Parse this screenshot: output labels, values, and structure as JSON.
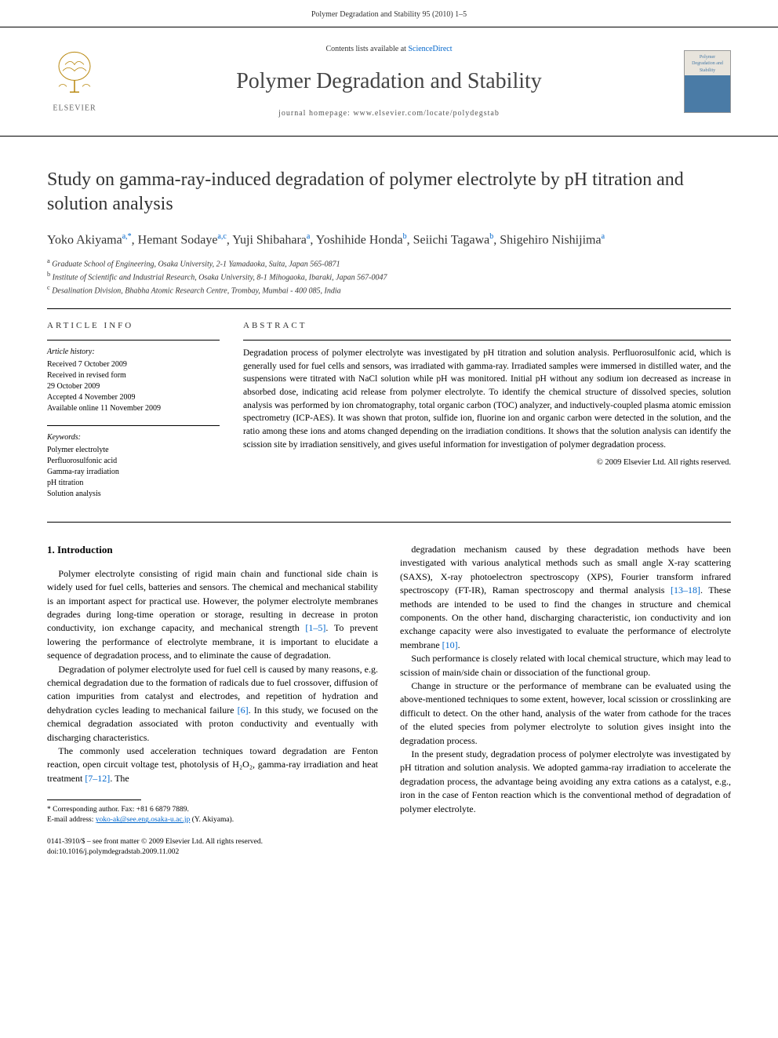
{
  "header": {
    "running_head": "Polymer Degradation and Stability 95 (2010) 1–5"
  },
  "masthead": {
    "contents_prefix": "Contents lists available at ",
    "contents_link": "ScienceDirect",
    "journal_name": "Polymer Degradation and Stability",
    "homepage_label": "journal homepage: www.elsevier.com/locate/polydegstab",
    "publisher_name": "ELSEVIER",
    "cover_text": "Polymer Degradation and Stability"
  },
  "article": {
    "title": "Study on gamma-ray-induced degradation of polymer electrolyte by pH titration and solution analysis",
    "authors_html": "Yoko Akiyama<sup>a,*</sup>, Hemant Sodaye<sup>a,c</sup>, Yuji Shibahara<sup>a</sup>, Yoshihide Honda<sup>b</sup>, Seiichi Tagawa<sup>b</sup>, Shigehiro Nishijima<sup>a</sup>",
    "affiliations": [
      {
        "sup": "a",
        "text": "Graduate School of Engineering, Osaka University, 2-1 Yamadaoka, Suita, Japan 565-0871"
      },
      {
        "sup": "b",
        "text": "Institute of Scientific and Industrial Research, Osaka University, 8-1 Mihogaoka, Ibaraki, Japan 567-0047"
      },
      {
        "sup": "c",
        "text": "Desalination Division, Bhabha Atomic Research Centre, Trombay, Mumbai - 400 085, India"
      }
    ]
  },
  "article_info": {
    "heading": "ARTICLE INFO",
    "history_label": "Article history:",
    "history": [
      "Received 7 October 2009",
      "Received in revised form",
      "29 October 2009",
      "Accepted 4 November 2009",
      "Available online 11 November 2009"
    ],
    "keywords_label": "Keywords:",
    "keywords": [
      "Polymer electrolyte",
      "Perfluorosulfonic acid",
      "Gamma-ray irradiation",
      "pH titration",
      "Solution analysis"
    ]
  },
  "abstract": {
    "heading": "ABSTRACT",
    "text": "Degradation process of polymer electrolyte was investigated by pH titration and solution analysis. Perfluorosulfonic acid, which is generally used for fuel cells and sensors, was irradiated with gamma-ray. Irradiated samples were immersed in distilled water, and the suspensions were titrated with NaCl solution while pH was monitored. Initial pH without any sodium ion decreased as increase in absorbed dose, indicating acid release from polymer electrolyte. To identify the chemical structure of dissolved species, solution analysis was performed by ion chromatography, total organic carbon (TOC) analyzer, and inductively-coupled plasma atomic emission spectrometry (ICP-AES). It was shown that proton, sulfide ion, fluorine ion and organic carbon were detected in the solution, and the ratio among these ions and atoms changed depending on the irradiation conditions. It shows that the solution analysis can identify the scission site by irradiation sensitively, and gives useful information for investigation of polymer degradation process.",
    "copyright": "© 2009 Elsevier Ltd. All rights reserved."
  },
  "body": {
    "section_heading": "1. Introduction",
    "left_paras": [
      "Polymer electrolyte consisting of rigid main chain and functional side chain is widely used for fuel cells, batteries and sensors. The chemical and mechanical stability is an important aspect for practical use. However, the polymer electrolyte membranes degrades during long-time operation or storage, resulting in decrease in proton conductivity, ion exchange capacity, and mechanical strength [1–5]. To prevent lowering the performance of electrolyte membrane, it is important to elucidate a sequence of degradation process, and to eliminate the cause of degradation.",
      "Degradation of polymer electrolyte used for fuel cell is caused by many reasons, e.g. chemical degradation due to the formation of radicals due to fuel crossover, diffusion of cation impurities from catalyst and electrodes, and repetition of hydration and dehydration cycles leading to mechanical failure [6]. In this study, we focused on the chemical degradation associated with proton conductivity and eventually with discharging characteristics.",
      "The commonly used acceleration techniques toward degradation are Fenton reaction, open circuit voltage test, photolysis of H₂O₂, gamma-ray irradiation and heat treatment [7–12]. The"
    ],
    "right_paras": [
      "degradation mechanism caused by these degradation methods have been investigated with various analytical methods such as small angle X-ray scattering (SAXS), X-ray photoelectron spectroscopy (XPS), Fourier transform infrared spectroscopy (FT-IR), Raman spectroscopy and thermal analysis [13–18]. These methods are intended to be used to find the changes in structure and chemical components. On the other hand, discharging characteristic, ion conductivity and ion exchange capacity were also investigated to evaluate the performance of electrolyte membrane [10].",
      "Such performance is closely related with local chemical structure, which may lead to scission of main/side chain or dissociation of the functional group.",
      "Change in structure or the performance of membrane can be evaluated using the above-mentioned techniques to some extent, however, local scission or crosslinking are difficult to detect. On the other hand, analysis of the water from cathode for the traces of the eluted species from polymer electrolyte to solution gives insight into the degradation process.",
      "In the present study, degradation process of polymer electrolyte was investigated by pH titration and solution analysis. We adopted gamma-ray irradiation to accelerate the degradation process, the advantage being avoiding any extra cations as a catalyst, e.g., iron in the case of Fenton reaction which is the conventional method of degradation of polymer electrolyte."
    ],
    "refs_left": [
      "[1–5]",
      "[6]",
      "[7–12]"
    ],
    "refs_right": [
      "[13–18]",
      "[10]"
    ]
  },
  "footer": {
    "corresponding_label": "* Corresponding author. Fax: +81 6 6879 7889.",
    "email_label": "E-mail address: ",
    "email": "yoko-ak@see.eng.osaka-u.ac.jp",
    "email_suffix": " (Y. Akiyama).",
    "front_matter": "0141-3910/$ – see front matter © 2009 Elsevier Ltd. All rights reserved.",
    "doi": "doi:10.1016/j.polymdegradstab.2009.11.002"
  },
  "colors": {
    "link": "#0066cc",
    "text": "#000000",
    "heading": "#333333"
  }
}
